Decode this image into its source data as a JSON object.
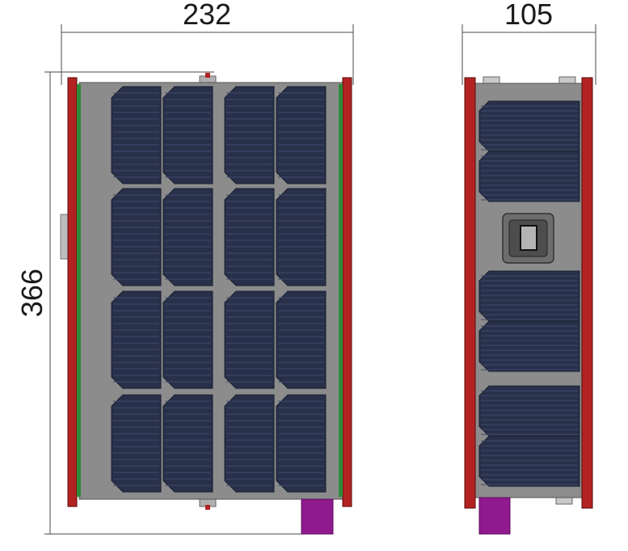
{
  "dimensions": {
    "width_left": "232",
    "width_right": "105",
    "height": "366"
  },
  "colors": {
    "panel_body": "#8c8c8c",
    "solar_cell": "#28304a",
    "solar_cell_line": "#3f4a6c",
    "rail_red": "#b22222",
    "rail_dark_red": "#7a1010",
    "rail_green": "#2e8b3a",
    "connector_purple": "#8e1a8e",
    "window_frame": "#6d6d6d",
    "dimension_line": "#4a4a4a"
  }
}
